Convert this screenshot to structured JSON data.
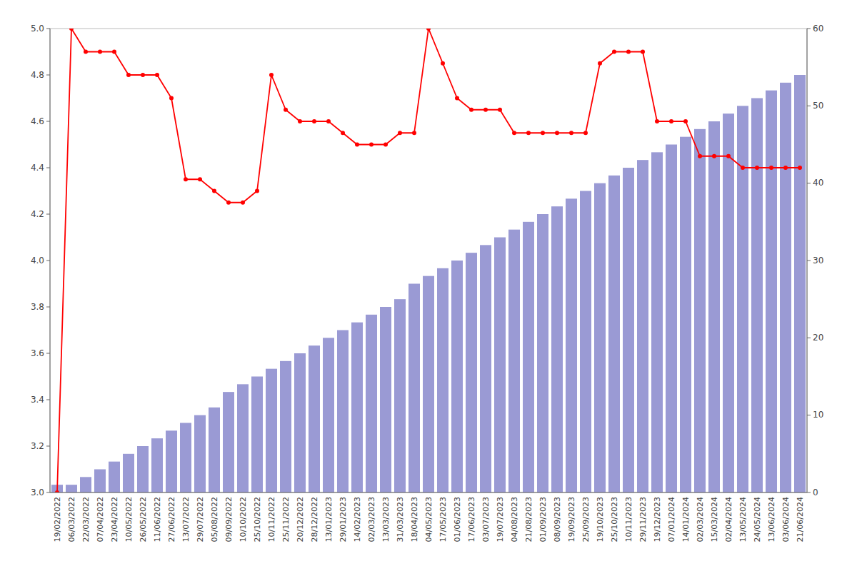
{
  "chart_data": {
    "type": "combo",
    "categories": [
      "19/02/2022",
      "06/03/2022",
      "22/03/2022",
      "07/04/2022",
      "23/04/2022",
      "10/05/2022",
      "26/05/2022",
      "11/06/2022",
      "27/06/2022",
      "13/07/2022",
      "29/07/2022",
      "05/08/2022",
      "09/09/2022",
      "10/10/2022",
      "25/10/2022",
      "10/11/2022",
      "25/11/2022",
      "20/12/2022",
      "28/12/2022",
      "13/01/2023",
      "29/01/2023",
      "14/02/2023",
      "02/03/2023",
      "13/03/2023",
      "31/03/2023",
      "18/04/2023",
      "04/05/2023",
      "17/05/2023",
      "01/06/2023",
      "17/06/2023",
      "03/07/2023",
      "19/07/2023",
      "04/08/2023",
      "21/08/2023",
      "01/09/2023",
      "08/09/2023",
      "19/09/2023",
      "25/09/2023",
      "19/10/2023",
      "25/10/2023",
      "10/11/2023",
      "29/11/2023",
      "19/12/2023",
      "07/01/2024",
      "14/01/2024",
      "02/03/2024",
      "15/03/2024",
      "02/04/2024",
      "13/05/2024",
      "24/05/2024",
      "13/06/2024",
      "03/06/2024",
      "21/06/2024"
    ],
    "series": [
      {
        "type": "bar",
        "axis": "y2",
        "color": "#8888cc",
        "values": [
          1,
          1,
          2,
          3,
          4,
          5,
          6,
          7,
          8,
          9,
          10,
          11,
          13,
          14,
          15,
          16,
          17,
          18,
          19,
          20,
          21,
          22,
          23,
          24,
          25,
          27,
          28,
          29,
          30,
          31,
          32,
          33,
          34,
          35,
          36,
          37,
          38,
          39,
          40,
          41,
          42,
          43,
          44,
          45,
          46,
          47,
          48,
          49,
          50,
          51,
          52,
          53,
          54
        ]
      },
      {
        "type": "line",
        "color": "#ff0000",
        "marker": "circle",
        "values": [
          3.0,
          5.0,
          4.9,
          4.9,
          4.9,
          4.8,
          4.8,
          4.8,
          4.7,
          4.35,
          4.35,
          4.3,
          4.25,
          4.25,
          4.3,
          4.8,
          4.65,
          4.6,
          4.6,
          4.6,
          4.55,
          4.5,
          4.5,
          4.5,
          4.55,
          4.55,
          5.0,
          4.85,
          4.7,
          4.65,
          4.65,
          4.65,
          4.55,
          4.55,
          4.55,
          4.55,
          4.55,
          4.55,
          4.85,
          4.9,
          4.9,
          4.9,
          4.6,
          4.6,
          4.6,
          4.45,
          4.45,
          4.45,
          4.4,
          4.4,
          4.4,
          4.4,
          4.4
        ]
      }
    ],
    "ylim": [
      3.0,
      5.0
    ],
    "yticks": [
      {
        "value": 3.0,
        "label": "3.0"
      },
      3.2,
      3.4,
      3.6,
      3.8,
      {
        "value": 4.0,
        "label": "4.0"
      },
      4.2,
      4.4,
      4.6,
      4.8,
      {
        "value": 5.0,
        "label": "5.0"
      }
    ],
    "y2lim": [
      0,
      60
    ],
    "y2ticks": [
      0,
      10,
      20,
      30,
      40,
      50,
      60
    ],
    "grid": false
  }
}
